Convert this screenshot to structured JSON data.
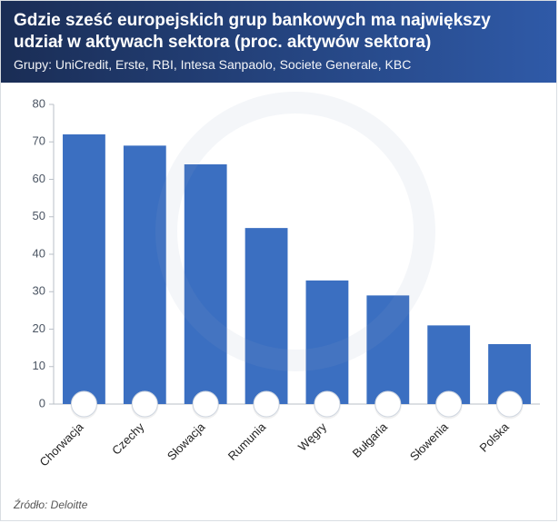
{
  "header": {
    "title": "Gdzie sześć europejskich grup bankowych ma największy udział w aktywach sektora (proc. aktywów sektora)",
    "subtitle": "Grupy: UniCredit, Erste, RBI, Intesa Sanpaolo, Societe Generale, KBC",
    "gradient_from": "#1a2d55",
    "gradient_to": "#2f5aa8",
    "text_color": "#ffffff"
  },
  "chart": {
    "type": "bar",
    "categories": [
      "Chorwacja",
      "Czechy",
      "Słowacja",
      "Rumunia",
      "Węgry",
      "Bułgaria",
      "Słowenia",
      "Polska"
    ],
    "values": [
      72,
      69,
      64,
      47,
      33,
      29,
      21,
      16
    ],
    "bar_color": "#3b6fc1",
    "ylim": [
      0,
      80
    ],
    "ytick_step": 10,
    "yticks": [
      0,
      10,
      20,
      30,
      40,
      50,
      60,
      70,
      80
    ],
    "axis_color": "#b9bfc7",
    "tick_label_color": "#4b5563",
    "xlabel_rotation_deg": -45,
    "bar_width_ratio": 0.7,
    "background_color": "#ffffff",
    "label_fontsize": 13,
    "flag_badge": {
      "radius": 14,
      "outer_ring_color": "#cfd6e0",
      "drop_shadow": true
    },
    "flags": {
      "Chorwacja": {
        "type": "tricolor-h",
        "colors": [
          "#d8241f",
          "#ffffff",
          "#1a2d8f"
        ],
        "emblem_color": "#d8241f"
      },
      "Czechy": {
        "type": "czech",
        "colors": [
          "#ffffff",
          "#d8241f",
          "#1a2d8f"
        ]
      },
      "Słowacja": {
        "type": "tricolor-h",
        "colors": [
          "#ffffff",
          "#1a2d8f",
          "#d8241f"
        ],
        "emblem_color": "#d8241f"
      },
      "Rumunia": {
        "type": "tricolor-v",
        "colors": [
          "#002b7f",
          "#fcd116",
          "#ce1126"
        ]
      },
      "Węgry": {
        "type": "tricolor-h",
        "colors": [
          "#cd2a3e",
          "#ffffff",
          "#436f4d"
        ]
      },
      "Bułgaria": {
        "type": "tricolor-h",
        "colors": [
          "#ffffff",
          "#00966e",
          "#d62612"
        ]
      },
      "Słowenia": {
        "type": "tricolor-h",
        "colors": [
          "#ffffff",
          "#1a2d8f",
          "#d8241f"
        ],
        "emblem_color": "#1a2d8f"
      },
      "Polska": {
        "type": "bicolor-h",
        "colors": [
          "#ffffff",
          "#dc143c"
        ]
      }
    }
  },
  "source": "Źródło: Deloitte",
  "card_border_color": "#d9dde2"
}
